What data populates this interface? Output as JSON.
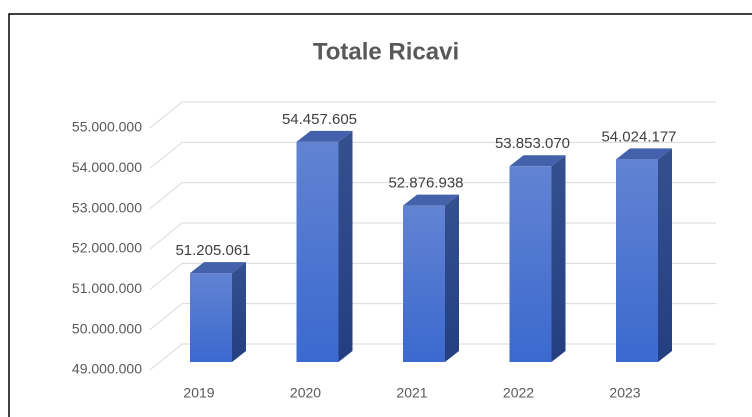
{
  "chart_data": {
    "type": "bar3d",
    "title": "Totale Ricavi",
    "categories": [
      "2019",
      "2020",
      "2021",
      "2022",
      "2023"
    ],
    "values": [
      51205061,
      54457605,
      52876938,
      53853070,
      54024177
    ],
    "value_labels": [
      "51.205.061",
      "54.457.605",
      "52.876.938",
      "53.853.070",
      "54.024.177"
    ],
    "color": "#4472c4",
    "ylim": [
      49000000,
      55000000
    ],
    "yticks": [
      {
        "value": 49000000,
        "label": "49.000.000"
      },
      {
        "value": 50000000,
        "label": "50.000.000"
      },
      {
        "value": 51000000,
        "label": "51.000.000"
      },
      {
        "value": 52000000,
        "label": "52.000.000"
      },
      {
        "value": 53000000,
        "label": "53.000.000"
      },
      {
        "value": 54000000,
        "label": "54.000.000"
      },
      {
        "value": 55000000,
        "label": "55.000.000"
      }
    ],
    "grid": true
  }
}
